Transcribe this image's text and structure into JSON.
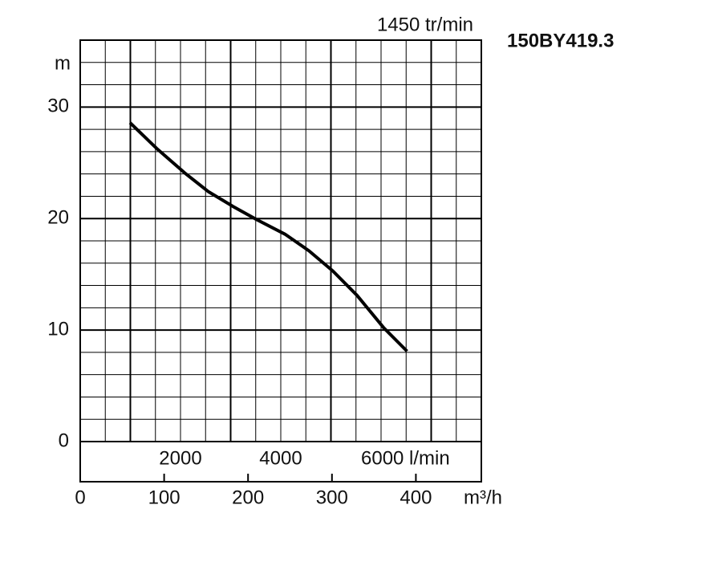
{
  "chart_data": {
    "type": "line",
    "title": "150BY419.3",
    "annotation": "1450 tr/min",
    "ylabel": "m",
    "xlabel": "m³/h",
    "x": [
      59.3,
      90.9,
      124.4,
      153,
      181.8,
      210.5,
      244,
      272.7,
      301,
      330,
      361.7,
      389.5
    ],
    "series": [
      {
        "color": "#000000",
        "values": [
          28.6,
          26.3,
          24.1,
          22.4,
          21.1,
          19.9,
          18.6,
          17.1,
          15.3,
          13.1,
          10.2,
          8.1
        ]
      }
    ],
    "xlim": [
      0,
      478
    ],
    "xticks": [
      0,
      100,
      200,
      300,
      400
    ],
    "ylim": [
      0,
      36
    ],
    "yticks": [
      0,
      10,
      20,
      30
    ],
    "y_minor_grid": [
      2,
      4,
      6,
      8,
      12,
      14,
      16,
      18,
      22,
      24,
      26,
      28,
      32,
      34,
      36
    ],
    "x2lim": [
      0,
      8000
    ],
    "x2ticks": [
      2000,
      4000,
      {
        "value": 6000,
        "label": "6000 l/min"
      }
    ],
    "x2_major_grid": [
      1000,
      3000,
      5000,
      7000
    ],
    "x2_minor_grid": [
      0,
      500,
      1500,
      2000,
      2500,
      3500,
      4000,
      4500,
      5500,
      6000,
      6500,
      7500,
      8000
    ],
    "grid": true
  }
}
